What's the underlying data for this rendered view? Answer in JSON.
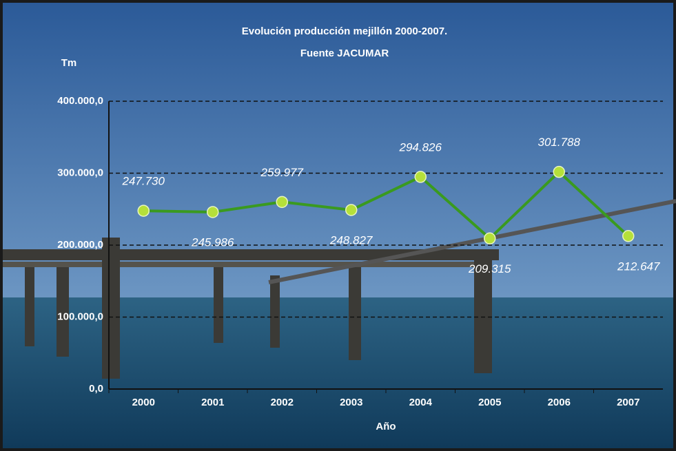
{
  "chart_data": {
    "type": "line",
    "title": "Evolución producción mejillón 2000-2007.",
    "subtitle": "Fuente JACUMAR",
    "y_label": "Tm",
    "x_label": "Año",
    "categories": [
      "2000",
      "2001",
      "2002",
      "2003",
      "2004",
      "2005",
      "2006",
      "2007"
    ],
    "series": [
      {
        "name": "Producción",
        "color": "#3a9a1f",
        "marker_color": "#b5e03a",
        "values": [
          247730,
          245986,
          259977,
          248827,
          294826,
          209315,
          301788,
          212647
        ],
        "value_labels": [
          "247.730",
          "245.986",
          "259.977",
          "248.827",
          "294.826",
          "209.315",
          "301.788",
          "212.647"
        ]
      }
    ],
    "ylim": [
      0,
      400000
    ],
    "yticks": [
      {
        "value": 0,
        "label": "0,0"
      },
      {
        "value": 100000,
        "label": "100.000,0"
      },
      {
        "value": 200000,
        "label": "200.000,0"
      },
      {
        "value": 300000,
        "label": "300.000,0"
      },
      {
        "value": 400000,
        "label": "400.000,0"
      }
    ],
    "grid": true
  }
}
